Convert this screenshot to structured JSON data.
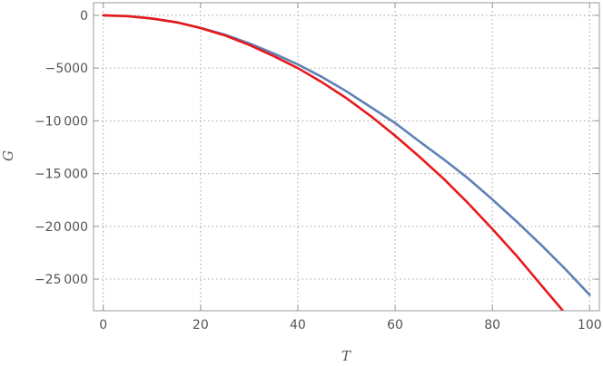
{
  "chart_data": {
    "type": "line",
    "title": "",
    "xlabel": "T",
    "ylabel": "G",
    "xlim": [
      -2,
      102
    ],
    "ylim": [
      -28000,
      1200
    ],
    "grid": true,
    "grid_style": "dotted",
    "x_ticks": [
      0,
      20,
      40,
      60,
      80,
      100
    ],
    "x_tick_labels": [
      "0",
      "20",
      "40",
      "60",
      "80",
      "100"
    ],
    "y_ticks": [
      0,
      -5000,
      -10000,
      -15000,
      -20000,
      -25000
    ],
    "y_tick_labels": [
      "0",
      "−5000",
      "−10 000",
      "−15 000",
      "−20 000",
      "−25 000"
    ],
    "series": [
      {
        "color": "#5e81b5",
        "x": [
          0,
          5,
          10,
          15,
          20,
          25,
          30,
          35,
          40,
          45,
          50,
          55,
          60,
          65,
          70,
          75,
          80,
          85,
          90,
          95,
          100
        ],
        "values": [
          0,
          -70,
          -300,
          -650,
          -1180,
          -1830,
          -2650,
          -3600,
          -4650,
          -5850,
          -7200,
          -8700,
          -10200,
          -11950,
          -13650,
          -15450,
          -17450,
          -19550,
          -21750,
          -24050,
          -26500
        ]
      },
      {
        "color": "#e8191a",
        "x": [
          0,
          5,
          10,
          15,
          20,
          25,
          30,
          35,
          40,
          45,
          50,
          55,
          60,
          65,
          70,
          75,
          80,
          85,
          90,
          94.5
        ],
        "values": [
          0,
          -70,
          -300,
          -650,
          -1200,
          -1900,
          -2800,
          -3850,
          -5000,
          -6350,
          -7850,
          -9550,
          -11400,
          -13400,
          -15500,
          -17800,
          -20250,
          -22800,
          -25550,
          -28000
        ]
      }
    ]
  }
}
